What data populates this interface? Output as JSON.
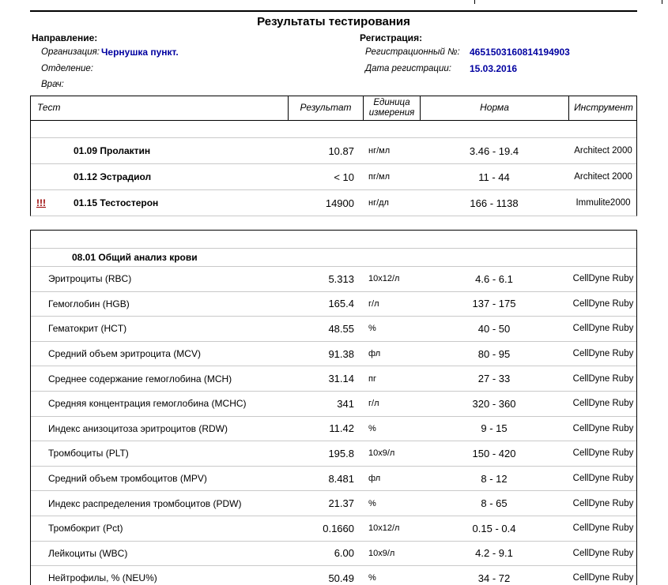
{
  "page": {
    "title": "Результаты тестирования"
  },
  "header": {
    "direction": {
      "section_label": "Направление:",
      "organization_label": "Организация:",
      "organization_value": "Чернушка пункт.",
      "department_label": "Отделение:",
      "department_value": "",
      "doctor_label": "Врач:",
      "doctor_value": ""
    },
    "registration": {
      "section_label": "Регистрация:",
      "number_label": "Регистрационный №:",
      "number_value": "4651503160814194903",
      "date_label": "Дата регистрации:",
      "date_value": "15.03.2016"
    }
  },
  "table": {
    "columns": [
      "Тест",
      "Результат",
      "Единица измерения",
      "Норма",
      "Инструмент"
    ]
  },
  "tables": [
    {
      "section_label": "",
      "rows": [
        {
          "flag": "",
          "bold": true,
          "test": "01.09 Пролактин",
          "result": "10.87",
          "unit": "нг/мл",
          "norm": "3.46 - 19.4",
          "instrument": "Architect 2000"
        },
        {
          "flag": "",
          "bold": true,
          "test": "01.12 Эстрадиол",
          "result": "< 10",
          "unit": "пг/мл",
          "norm": "11 - 44",
          "instrument": "Architect 2000"
        },
        {
          "flag": "!!!",
          "bold": true,
          "test": "01.15 Тестостерон",
          "result": "14900",
          "unit": "нг/дл",
          "norm": "166 - 1138",
          "instrument": "Immulite2000"
        }
      ]
    },
    {
      "section_label": "08.01 Общий анализ крови",
      "rows": [
        {
          "flag": "",
          "test": "Эритроциты (RBC)",
          "result": "5.313",
          "unit": "10x12/л",
          "norm": "4.6 - 6.1",
          "instrument": "CellDyne Ruby"
        },
        {
          "flag": "",
          "test": "Гемоглобин (HGB)",
          "result": "165.4",
          "unit": "г/л",
          "norm": "137 - 175",
          "instrument": "CellDyne Ruby"
        },
        {
          "flag": "",
          "test": "Гематокрит (HCT)",
          "result": "48.55",
          "unit": "%",
          "norm": "40 - 50",
          "instrument": "CellDyne Ruby"
        },
        {
          "flag": "",
          "test": "Средний объем эритроцита (MCV)",
          "result": "91.38",
          "unit": "фл",
          "norm": "80 - 95",
          "instrument": "CellDyne Ruby"
        },
        {
          "flag": "",
          "test": "Среднее содержание гемоглобина (MCH)",
          "result": "31.14",
          "unit": "пг",
          "norm": "27 - 33",
          "instrument": "CellDyne Ruby"
        },
        {
          "flag": "",
          "test": "Средняя концентрация гемоглобина (MCHC)",
          "result": "341",
          "unit": "г/л",
          "norm": "320 - 360",
          "instrument": "CellDyne Ruby"
        },
        {
          "flag": "",
          "test": "Индекс анизоцитоза эритроцитов (RDW)",
          "result": "11.42",
          "unit": "%",
          "norm": "9 - 15",
          "instrument": "CellDyne Ruby"
        },
        {
          "flag": "",
          "test": "Тромбоциты (PLT)",
          "result": "195.8",
          "unit": "10x9/л",
          "norm": "150 - 420",
          "instrument": "CellDyne Ruby"
        },
        {
          "flag": "",
          "test": "Средний объем тромбоцитов (MPV)",
          "result": "8.481",
          "unit": "фл",
          "norm": "8 - 12",
          "instrument": "CellDyne Ruby"
        },
        {
          "flag": "",
          "test": "Индекс распределения тромбоцитов (PDW)",
          "result": "21.37",
          "unit": "%",
          "norm": "8 - 65",
          "instrument": "CellDyne Ruby"
        },
        {
          "flag": "",
          "test": "Тромбокрит (Pct)",
          "result": "0.1660",
          "unit": "10x12/л",
          "norm": "0.15 - 0.4",
          "instrument": "CellDyne Ruby"
        },
        {
          "flag": "",
          "test": "Лейкоциты (WBC)",
          "result": "6.00",
          "unit": "10x9/л",
          "norm": "4.2 - 9.1",
          "instrument": "CellDyne Ruby"
        },
        {
          "flag": "",
          "test": "Нейтрофилы, % (NEU%)",
          "result": "50.49",
          "unit": "%",
          "norm": "34 - 72",
          "instrument": "CellDyne Ruby"
        }
      ]
    }
  ],
  "colors": {
    "value_navy": "#0000A0",
    "flag_red": "#990000",
    "row_divider": "#c9c9c9"
  }
}
